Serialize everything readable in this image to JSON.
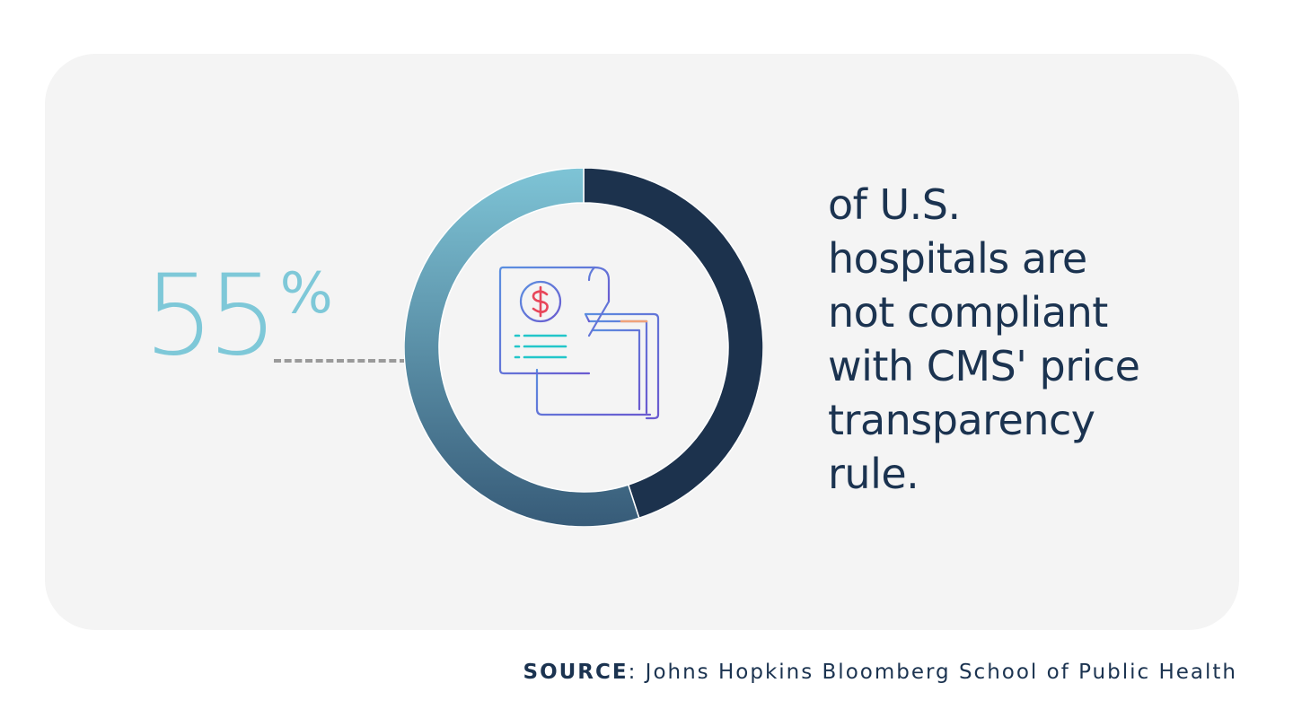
{
  "chart_data": {
    "type": "pie",
    "values": [
      55,
      45
    ],
    "colors": {
      "stat": "#7ec8d8",
      "ring_highlight_top": "#7ec4d6",
      "ring_highlight_bottom": "#375b78",
      "ring_remainder": "#1c324d",
      "text": "#1b3350"
    }
  },
  "stat": {
    "number": "55",
    "unit": "%"
  },
  "caption_lines": [
    "of U.S.",
    "hospitals are",
    "not compliant",
    "with CMS' price",
    "transparency",
    "rule."
  ],
  "source": {
    "label": "SOURCE",
    "text": ": Johns Hopkins Bloomberg School of Public Health"
  },
  "icon": "invoice-document-icon"
}
